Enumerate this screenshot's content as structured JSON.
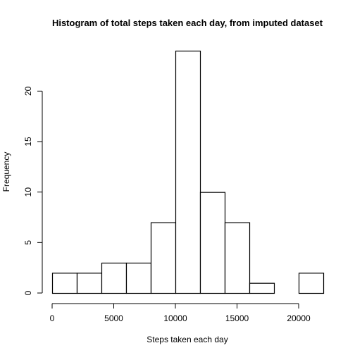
{
  "chart_data": {
    "type": "bar",
    "title": "Histogram of total steps taken each day, from imputed dataset",
    "xlabel": "Steps taken each day",
    "ylabel": "Frequency",
    "bins": [
      {
        "start": 0,
        "end": 2000,
        "count": 2
      },
      {
        "start": 2000,
        "end": 4000,
        "count": 2
      },
      {
        "start": 4000,
        "end": 6000,
        "count": 3
      },
      {
        "start": 6000,
        "end": 8000,
        "count": 3
      },
      {
        "start": 8000,
        "end": 10000,
        "count": 7
      },
      {
        "start": 10000,
        "end": 12000,
        "count": 24
      },
      {
        "start": 12000,
        "end": 14000,
        "count": 10
      },
      {
        "start": 14000,
        "end": 16000,
        "count": 7
      },
      {
        "start": 16000,
        "end": 18000,
        "count": 1
      },
      {
        "start": 18000,
        "end": 20000,
        "count": 0
      },
      {
        "start": 20000,
        "end": 22000,
        "count": 2
      }
    ],
    "xlim": [
      0,
      22000
    ],
    "ylim": [
      0,
      24
    ],
    "x_ticks": [
      0,
      5000,
      10000,
      15000,
      20000
    ],
    "x_tick_labels": [
      "0",
      "5000",
      "10000",
      "15000",
      "20000"
    ],
    "y_ticks": [
      0,
      5,
      10,
      15,
      20
    ],
    "y_tick_labels": [
      "0",
      "5",
      "10",
      "15",
      "20"
    ],
    "grid": false,
    "bar_fill": "#ffffff",
    "bar_stroke": "#000000"
  }
}
